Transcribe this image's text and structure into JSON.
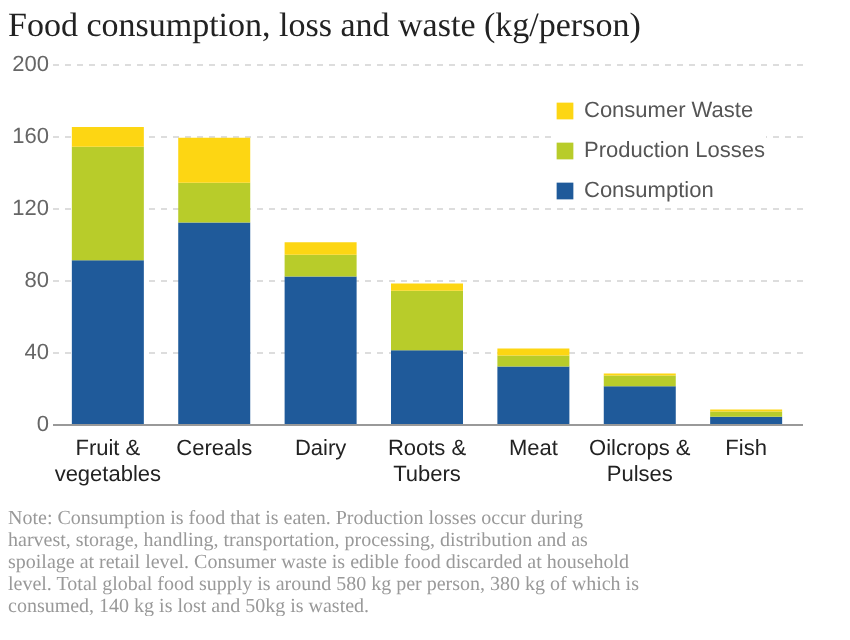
{
  "chart_data": {
    "type": "bar",
    "title": "Food consumption, loss and waste (kg/person)",
    "categories": [
      "Fruit & vegetables",
      "Cereals",
      "Dairy",
      "Roots & Tubers",
      "Meat",
      "Oilcrops & Pulses",
      "Fish"
    ],
    "stacked": true,
    "series": [
      {
        "name": "Consumption",
        "color": "#1f5a9a",
        "values": [
          91,
          112,
          82,
          41,
          32,
          21,
          4
        ]
      },
      {
        "name": "Production Losses",
        "color": "#b8cc2a",
        "values": [
          63,
          22,
          12,
          33,
          6,
          6,
          3
        ]
      },
      {
        "name": "Consumer Waste",
        "color": "#fdd613",
        "values": [
          11,
          25,
          7,
          4,
          4,
          1,
          1
        ]
      }
    ],
    "ylim": [
      0,
      200
    ],
    "yticks": [
      0,
      40,
      80,
      120,
      160,
      200
    ],
    "grid": "y",
    "legend": "top right",
    "annotations": [
      "Note: Consumption is food that is eaten.  Production losses occur during harvest, storage, handling, transportation, processing, distribution and as spoilage at retail level. Consumer waste is edible food discarded at household level.  Total global food supply is around 580 kg per person, 380 kg of which is consumed, 140 kg is lost and 50kg is wasted."
    ]
  }
}
